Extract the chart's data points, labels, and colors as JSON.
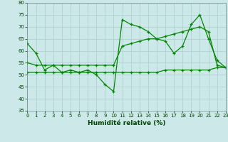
{
  "title": "",
  "xlabel": "Humidité relative (%)",
  "ylabel": "",
  "background_color": "#cce8e8",
  "grid_color": "#aacece",
  "line_color": "#008800",
  "x": [
    0,
    1,
    2,
    3,
    4,
    5,
    6,
    7,
    8,
    9,
    10,
    11,
    12,
    13,
    14,
    15,
    16,
    17,
    18,
    19,
    20,
    21,
    22,
    23
  ],
  "series1": [
    63,
    59,
    52,
    54,
    51,
    52,
    51,
    52,
    50,
    46,
    43,
    73,
    71,
    70,
    68,
    65,
    64,
    59,
    62,
    71,
    75,
    65,
    56,
    53
  ],
  "series2": [
    55,
    54,
    54,
    54,
    54,
    54,
    54,
    54,
    54,
    54,
    54,
    62,
    63,
    64,
    65,
    65,
    66,
    67,
    68,
    69,
    70,
    68,
    54,
    53
  ],
  "series3": [
    51,
    51,
    51,
    51,
    51,
    51,
    51,
    51,
    51,
    51,
    51,
    51,
    51,
    51,
    51,
    51,
    52,
    52,
    52,
    52,
    52,
    52,
    53,
    53
  ],
  "ylim": [
    35,
    80
  ],
  "xlim": [
    0,
    23
  ],
  "yticks": [
    35,
    40,
    45,
    50,
    55,
    60,
    65,
    70,
    75,
    80
  ],
  "xticks": [
    0,
    1,
    2,
    3,
    4,
    5,
    6,
    7,
    8,
    9,
    10,
    11,
    12,
    13,
    14,
    15,
    16,
    17,
    18,
    19,
    20,
    21,
    22,
    23
  ]
}
